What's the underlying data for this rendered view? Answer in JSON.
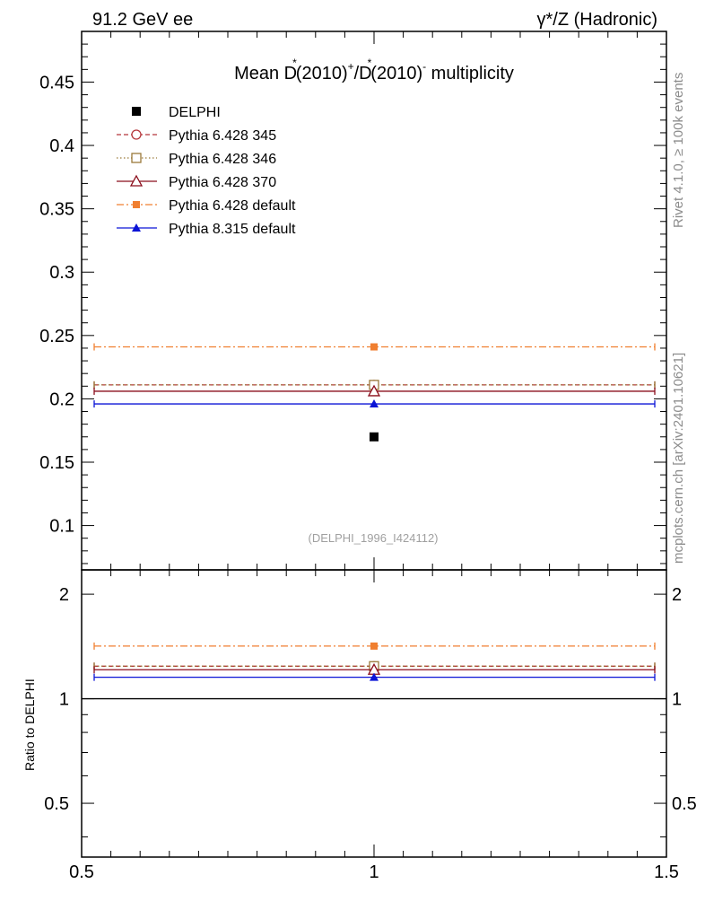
{
  "header": {
    "left": "91.2 GeV ee",
    "right": "γ*/Z (Hadronic)"
  },
  "title": {
    "prefix": "Mean D",
    "star1": "*",
    "mid1": "(2010)",
    "plus": "+",
    "slash": "/D",
    "star2": "*",
    "mid2": "(2010)",
    "minus": "-",
    "suffix": " multiplicity"
  },
  "side_labels": {
    "rivet": "Rivet 4.1.0, ≥ 100k events",
    "mcplots": "mcplots.cern.ch [arXiv:2401.10621]"
  },
  "analysis_id": "(DELPHI_1996_I424112)",
  "colors": {
    "delphi": "#000000",
    "p345": "#b5363a",
    "p346": "#9a7a3a",
    "p370": "#8b0e1c",
    "p6def": "#f07f30",
    "p8def": "#0b14d6"
  },
  "chart_data": [
    {
      "type": "scatter",
      "name": "main",
      "xlim": [
        0.5,
        1.5
      ],
      "ylim": [
        0.065,
        0.49
      ],
      "yticks": [
        0.1,
        0.15,
        0.2,
        0.25,
        0.3,
        0.35,
        0.4,
        0.45
      ],
      "ytick_labels": [
        "0.1",
        "0.15",
        "0.2",
        "0.25",
        "0.3",
        "0.35",
        "0.4",
        "0.45"
      ],
      "series": [
        {
          "name": "DELPHI",
          "key": "delphi",
          "marker": "square-filled",
          "line": "none",
          "x": 1.0,
          "y": 0.17
        },
        {
          "name": "Pythia 6.428 345",
          "key": "p345",
          "marker": "circle-open",
          "line": "dashed",
          "x": 1.0,
          "y": 0.211
        },
        {
          "name": "Pythia 6.428 346",
          "key": "p346",
          "marker": "square-open",
          "line": "dotted",
          "x": 1.0,
          "y": 0.211
        },
        {
          "name": "Pythia 6.428 370",
          "key": "p370",
          "marker": "triangle-open",
          "line": "solid",
          "x": 1.0,
          "y": 0.206
        },
        {
          "name": "Pythia 6.428 default",
          "key": "p6def",
          "marker": "square-filled",
          "line": "dashdot",
          "x": 1.0,
          "y": 0.241
        },
        {
          "name": "Pythia 8.315 default",
          "key": "p8def",
          "marker": "triangle-filled",
          "line": "solid",
          "x": 1.0,
          "y": 0.196
        }
      ]
    },
    {
      "type": "scatter",
      "name": "ratio",
      "ylabel": "Ratio to DELPHI",
      "xlim": [
        0.5,
        1.5
      ],
      "ylim": [
        0.35,
        2.35
      ],
      "yticks": [
        0.5,
        1,
        2
      ],
      "ytick_labels": [
        "0.5",
        "1",
        "2"
      ],
      "xticks": [
        0.5,
        1,
        1.5
      ],
      "xtick_labels": [
        "0.5",
        "1",
        "1.5"
      ],
      "series": [
        {
          "name": "Pythia 6.428 345",
          "key": "p345",
          "marker": "circle-open",
          "line": "dashed",
          "x": 1.0,
          "y": 1.241
        },
        {
          "name": "Pythia 6.428 346",
          "key": "p346",
          "marker": "square-open",
          "line": "dotted",
          "x": 1.0,
          "y": 1.241
        },
        {
          "name": "Pythia 6.428 370",
          "key": "p370",
          "marker": "triangle-open",
          "line": "solid",
          "x": 1.0,
          "y": 1.212
        },
        {
          "name": "Pythia 6.428 default",
          "key": "p6def",
          "marker": "square-filled",
          "line": "dashdot",
          "x": 1.0,
          "y": 1.418
        },
        {
          "name": "Pythia 8.315 default",
          "key": "p8def",
          "marker": "triangle-filled",
          "line": "solid",
          "x": 1.0,
          "y": 1.153
        }
      ]
    }
  ]
}
